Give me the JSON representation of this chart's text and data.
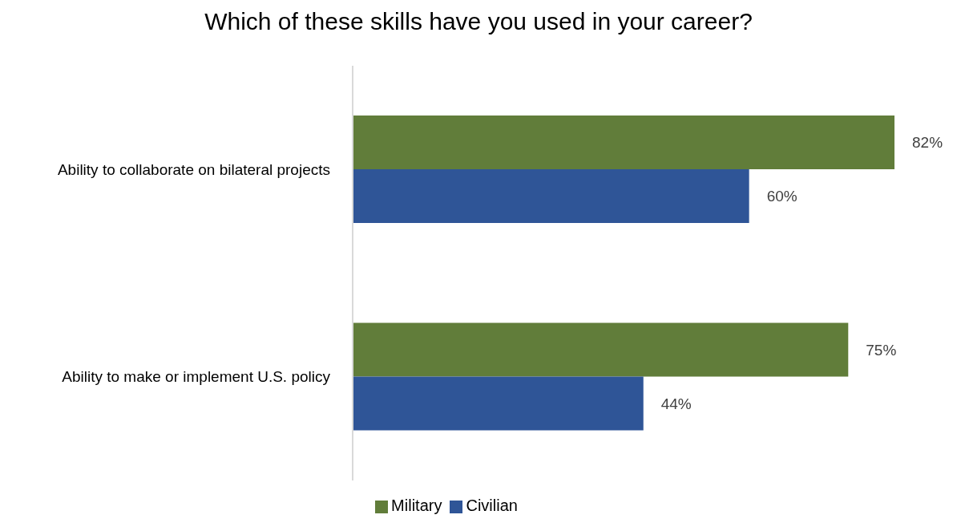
{
  "chart_data": {
    "type": "bar",
    "orientation": "horizontal",
    "title": "Which of these skills have you used in your career?",
    "categories": [
      "Ability to collaborate on bilateral projects",
      "Ability to make or implement U.S. policy"
    ],
    "series": [
      {
        "name": "Military",
        "color": "#617d3a",
        "values": [
          82,
          75
        ],
        "value_labels": [
          "82%",
          "75%"
        ]
      },
      {
        "name": "Civilian",
        "color": "#2f5597",
        "values": [
          60,
          44
        ],
        "value_labels": [
          "60%",
          "44%"
        ]
      }
    ],
    "grid": false,
    "legend": "bottom"
  }
}
